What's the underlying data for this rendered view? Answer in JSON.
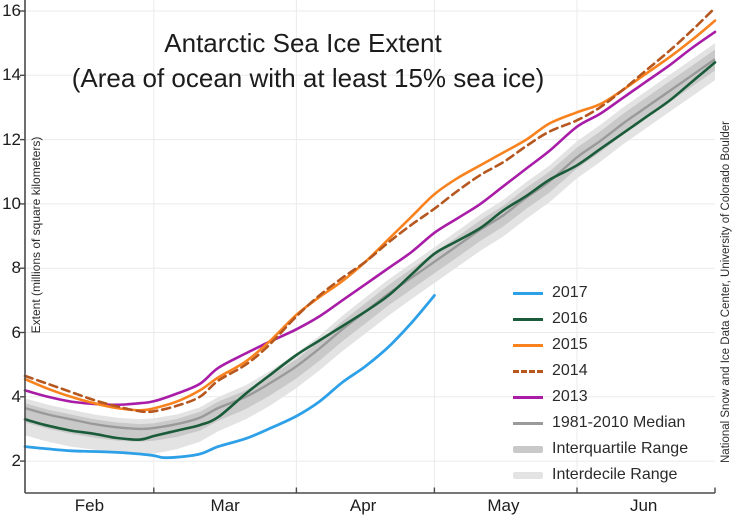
{
  "title": "Antarctic Sea Ice Extent",
  "subtitle": "(Area of ocean with at least 15% sea ice)",
  "ylabel": "Extent (millions of square kilometers)",
  "credit": "National Snow and Ice Data Center, University of Colorado Boulder",
  "colors": {
    "blue2017": "#2da0e8",
    "green2016": "#1a5c3a",
    "orange2015": "#f8821e",
    "brick2014": "#b5571f",
    "magenta2013": "#a81ca8",
    "median": "#9a9a9a",
    "interquartile": "#c9c9c9",
    "interdecile": "#e3e3e3",
    "grid": "#ebebeb",
    "axis": "#4a4a4a"
  },
  "chart_data": {
    "type": "line",
    "title": "Antarctic Sea Ice Extent",
    "subtitle": "(Area of ocean with at least 15% sea ice)",
    "xlabel": "",
    "ylabel": "Extent (millions of square kilometers)",
    "x_unit": "days since Feb 1",
    "xlim_days": [
      0,
      150
    ],
    "ylim": [
      1.0,
      16.35
    ],
    "y_ticks": [
      2,
      4,
      6,
      8,
      10,
      12,
      14,
      16
    ],
    "grid": true,
    "legend_position": "lower right",
    "months": [
      {
        "label": "Feb",
        "start_day": 0,
        "mid_day": 14
      },
      {
        "label": "Mar",
        "start_day": 28,
        "mid_day": 43.5
      },
      {
        "label": "Apr",
        "start_day": 59,
        "mid_day": 73.5
      },
      {
        "label": "May",
        "start_day": 89,
        "mid_day": 104
      },
      {
        "label": "Jun",
        "start_day": 120,
        "mid_day": 134.5
      }
    ],
    "x_tick_days": [
      28,
      59,
      89,
      120,
      150
    ],
    "days_grid": [
      0,
      5,
      10,
      15,
      20,
      25,
      28,
      33,
      38,
      42,
      48,
      53,
      59,
      64,
      69,
      74,
      79,
      84,
      89,
      94,
      99,
      104,
      109,
      114,
      120,
      125,
      130,
      135,
      140,
      145,
      150
    ],
    "bands": {
      "interdecile": {
        "label": "Interdecile Range",
        "color": "#e3e3e3",
        "top": [
          3.95,
          3.75,
          3.6,
          3.45,
          3.35,
          3.3,
          3.33,
          3.45,
          3.67,
          3.99,
          4.36,
          4.78,
          5.35,
          5.9,
          6.52,
          7.09,
          7.65,
          8.15,
          8.65,
          9.16,
          9.67,
          10.13,
          10.68,
          11.19,
          11.95,
          12.45,
          13.0,
          13.5,
          14.0,
          14.5,
          15.0
        ],
        "bottom": [
          2.8,
          2.6,
          2.45,
          2.35,
          2.25,
          2.2,
          2.23,
          2.37,
          2.6,
          2.93,
          3.3,
          3.7,
          4.27,
          4.82,
          5.42,
          5.97,
          6.52,
          7.04,
          7.54,
          8.04,
          8.54,
          8.99,
          9.54,
          10.05,
          10.8,
          11.3,
          11.85,
          12.35,
          12.85,
          13.35,
          13.85
        ]
      },
      "interquartile": {
        "label": "Interquartile Range",
        "color": "#c9c9c9",
        "top": [
          3.8,
          3.6,
          3.45,
          3.3,
          3.2,
          3.15,
          3.18,
          3.31,
          3.53,
          3.85,
          4.2,
          4.62,
          5.17,
          5.74,
          6.35,
          6.91,
          7.47,
          7.98,
          8.48,
          8.98,
          9.49,
          9.95,
          10.5,
          11.0,
          11.75,
          12.25,
          12.8,
          13.3,
          13.8,
          14.3,
          14.8
        ],
        "bottom": [
          3.2,
          3.0,
          2.85,
          2.73,
          2.63,
          2.6,
          2.63,
          2.75,
          2.95,
          3.25,
          3.62,
          4.02,
          4.57,
          5.12,
          5.73,
          6.28,
          6.84,
          7.34,
          7.84,
          8.34,
          8.85,
          9.3,
          9.85,
          10.35,
          11.1,
          11.6,
          12.15,
          12.65,
          13.15,
          13.65,
          14.15
        ]
      }
    },
    "median": {
      "name": "1981-2010 Median",
      "color": "#9a9a9a",
      "values": [
        3.65,
        3.45,
        3.3,
        3.15,
        3.05,
        3.0,
        3.03,
        3.15,
        3.35,
        3.65,
        4.0,
        4.4,
        4.95,
        5.5,
        6.1,
        6.65,
        7.2,
        7.7,
        8.2,
        8.7,
        9.2,
        9.65,
        10.2,
        10.7,
        11.45,
        11.95,
        12.5,
        13.0,
        13.5,
        14.0,
        14.5
      ]
    },
    "series": [
      {
        "name": "2016",
        "color": "#1a5c3a",
        "style": "solid",
        "values": [
          3.3,
          3.1,
          2.95,
          2.85,
          2.72,
          2.67,
          2.78,
          2.95,
          3.12,
          3.37,
          4.1,
          4.65,
          5.3,
          5.75,
          6.2,
          6.65,
          7.15,
          7.8,
          8.45,
          8.85,
          9.25,
          9.8,
          10.25,
          10.75,
          11.2,
          11.7,
          12.2,
          12.7,
          13.2,
          13.8,
          14.4
        ]
      },
      {
        "name": "2013",
        "color": "#a81ca8",
        "style": "solid",
        "values": [
          4.2,
          4.0,
          3.85,
          3.78,
          3.75,
          3.8,
          3.86,
          4.1,
          4.4,
          4.9,
          5.35,
          5.7,
          6.1,
          6.5,
          7.0,
          7.5,
          8.0,
          8.5,
          9.1,
          9.55,
          10.0,
          10.55,
          11.1,
          11.65,
          12.4,
          12.8,
          13.3,
          13.8,
          14.3,
          14.85,
          15.35
        ]
      },
      {
        "name": "2015",
        "color": "#f8821e",
        "style": "solid",
        "values": [
          4.55,
          4.25,
          4.0,
          3.8,
          3.65,
          3.58,
          3.64,
          3.85,
          4.2,
          4.6,
          5.1,
          5.7,
          6.55,
          7.1,
          7.6,
          8.2,
          8.9,
          9.6,
          10.3,
          10.8,
          11.2,
          11.6,
          12.0,
          12.5,
          12.85,
          13.1,
          13.55,
          14.05,
          14.55,
          15.1,
          15.7
        ]
      },
      {
        "name": "2014",
        "color": "#b5571f",
        "style": "dashed",
        "values": [
          4.65,
          4.4,
          4.15,
          3.9,
          3.7,
          3.55,
          3.55,
          3.72,
          4.0,
          4.5,
          5.0,
          5.6,
          6.5,
          7.15,
          7.7,
          8.2,
          8.8,
          9.35,
          9.85,
          10.4,
          10.9,
          11.3,
          11.8,
          12.25,
          12.6,
          13.0,
          13.55,
          14.15,
          14.75,
          15.4,
          16.1
        ]
      },
      {
        "name": "2017",
        "color": "#2da0e8",
        "style": "solid",
        "days": [
          0,
          5,
          10,
          15,
          20,
          25,
          28,
          30,
          33,
          38,
          42,
          48,
          53,
          59,
          64,
          69,
          74,
          79,
          84,
          89
        ],
        "values": [
          2.45,
          2.38,
          2.32,
          2.3,
          2.27,
          2.22,
          2.17,
          2.11,
          2.12,
          2.22,
          2.45,
          2.7,
          3.0,
          3.4,
          3.85,
          4.45,
          4.95,
          5.55,
          6.3,
          7.15
        ]
      }
    ]
  },
  "legend": {
    "items": [
      {
        "id": "2017",
        "label": "2017",
        "swatch": "line",
        "color": "#2da0e8"
      },
      {
        "id": "2016",
        "label": "2016",
        "swatch": "line",
        "color": "#1a5c3a"
      },
      {
        "id": "2015",
        "label": "2015",
        "swatch": "line",
        "color": "#f8821e"
      },
      {
        "id": "2014",
        "label": "2014",
        "swatch": "dashed",
        "color": "#b5571f"
      },
      {
        "id": "2013",
        "label": "2013",
        "swatch": "line",
        "color": "#a81ca8"
      },
      {
        "id": "median",
        "label": "1981-2010 Median",
        "swatch": "line",
        "color": "#9a9a9a"
      },
      {
        "id": "interquartile",
        "label": "Interquartile Range",
        "swatch": "band",
        "color": "#c9c9c9"
      },
      {
        "id": "interdecile",
        "label": "Interdecile Range",
        "swatch": "band",
        "color": "#e3e3e3"
      }
    ]
  }
}
